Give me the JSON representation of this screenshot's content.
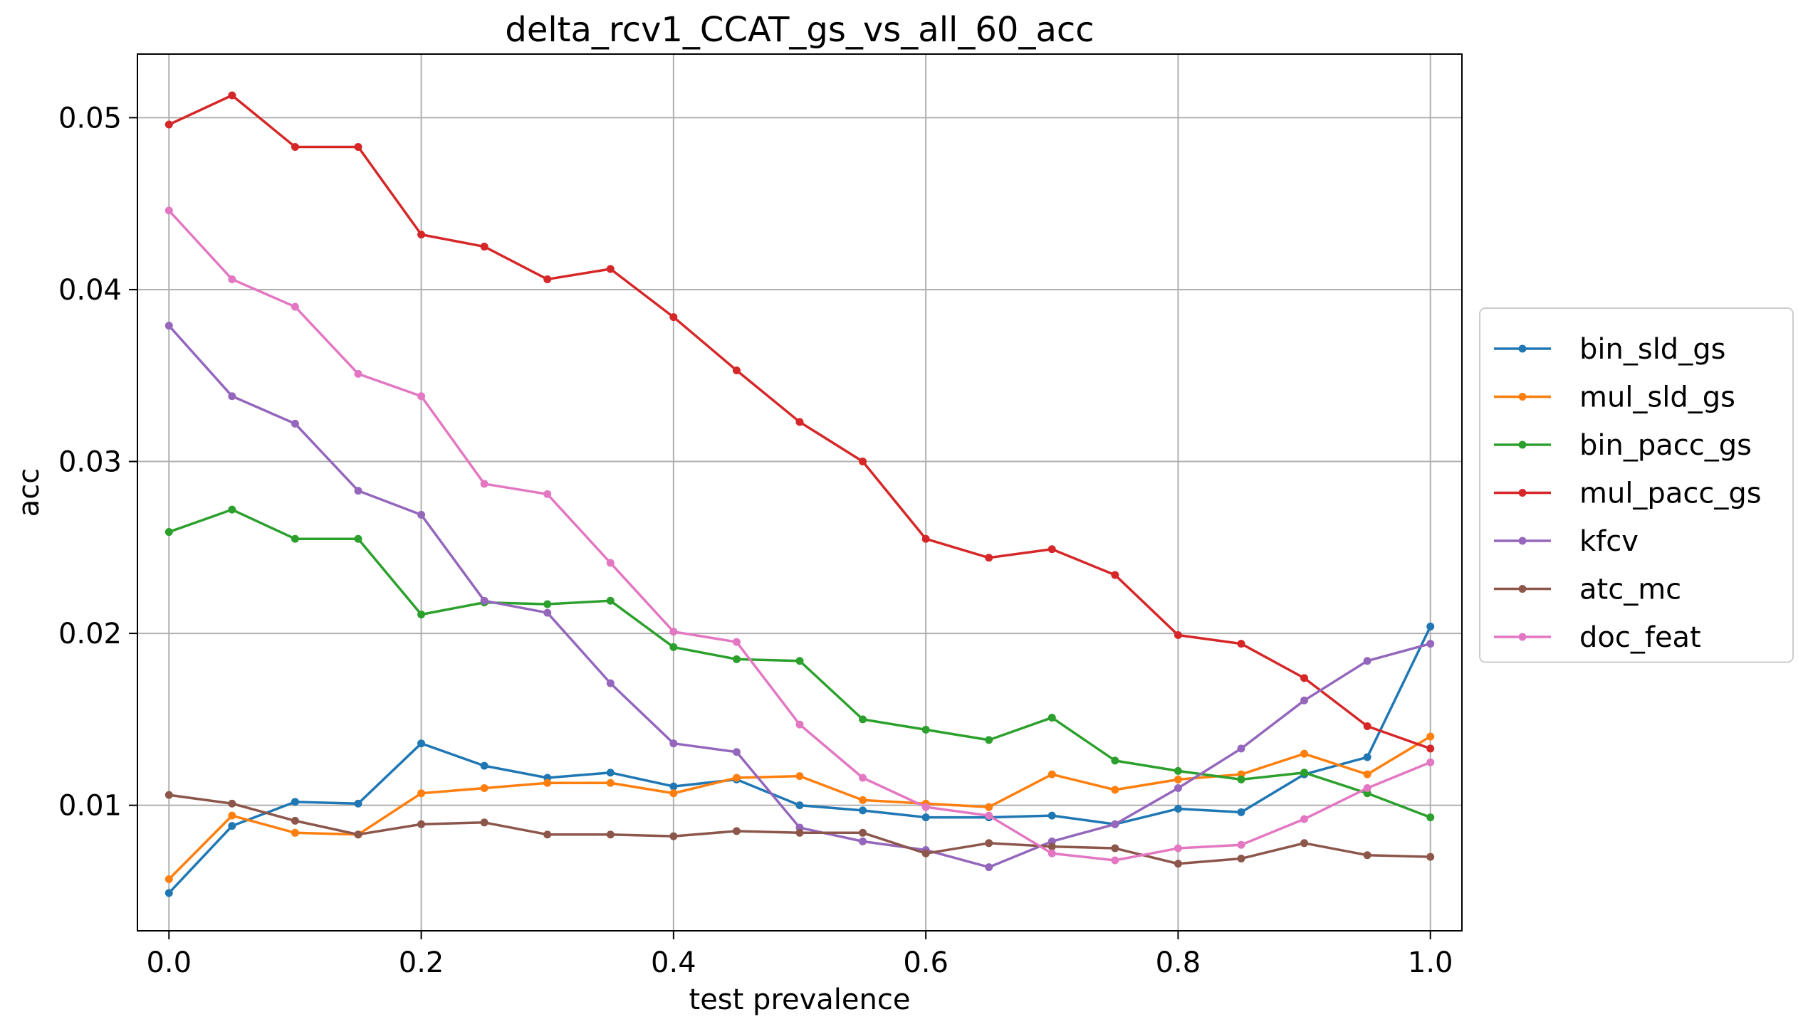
{
  "chart_data": {
    "type": "line",
    "title": "delta_rcv1_CCAT_gs_vs_all_60_acc",
    "xlabel": "test prevalence",
    "ylabel": "acc",
    "xlim": [
      -0.025,
      1.025
    ],
    "ylim": [
      0.0027,
      0.0537
    ],
    "xticks": [
      0.0,
      0.2,
      0.4,
      0.6,
      0.8,
      1.0
    ],
    "xtick_labels": [
      "0.0",
      "0.2",
      "0.4",
      "0.6",
      "0.8",
      "1.0"
    ],
    "yticks": [
      0.01,
      0.02,
      0.03,
      0.04,
      0.05
    ],
    "ytick_labels": [
      "0.01",
      "0.02",
      "0.03",
      "0.04",
      "0.05"
    ],
    "grid": true,
    "legend_position": "center-right-outside",
    "x": [
      0.0,
      0.05,
      0.1,
      0.15,
      0.2,
      0.25,
      0.3,
      0.35,
      0.4,
      0.45,
      0.5,
      0.55,
      0.6,
      0.65,
      0.7,
      0.75,
      0.8,
      0.85,
      0.9,
      0.95,
      1.0
    ],
    "series": [
      {
        "name": "bin_sld_gs",
        "color": "#1f77b4",
        "values": [
          0.0049,
          0.0088,
          0.0102,
          0.0101,
          0.0136,
          0.0123,
          0.0116,
          0.0119,
          0.0111,
          0.0115,
          0.01,
          0.0097,
          0.0093,
          0.0093,
          0.0094,
          0.0089,
          0.0098,
          0.0096,
          0.0118,
          0.0128,
          0.0204
        ]
      },
      {
        "name": "mul_sld_gs",
        "color": "#ff7f0e",
        "values": [
          0.0057,
          0.0094,
          0.0084,
          0.0083,
          0.0107,
          0.011,
          0.0113,
          0.0113,
          0.0107,
          0.0116,
          0.0117,
          0.0103,
          0.0101,
          0.0099,
          0.0118,
          0.0109,
          0.0115,
          0.0118,
          0.013,
          0.0118,
          0.014
        ]
      },
      {
        "name": "bin_pacc_gs",
        "color": "#2ca02c",
        "values": [
          0.0259,
          0.0272,
          0.0255,
          0.0255,
          0.0211,
          0.0218,
          0.0217,
          0.0219,
          0.0192,
          0.0185,
          0.0184,
          0.015,
          0.0144,
          0.0138,
          0.0151,
          0.0126,
          0.012,
          0.0115,
          0.0119,
          0.0107,
          0.0093
        ]
      },
      {
        "name": "mul_pacc_gs",
        "color": "#d62728",
        "values": [
          0.0496,
          0.0513,
          0.0483,
          0.0483,
          0.0432,
          0.0425,
          0.0406,
          0.0412,
          0.0384,
          0.0353,
          0.0323,
          0.03,
          0.0255,
          0.0244,
          0.0249,
          0.0234,
          0.0199,
          0.0194,
          0.0174,
          0.0146,
          0.0133
        ]
      },
      {
        "name": "kfcv",
        "color": "#9467bd",
        "values": [
          0.0379,
          0.0338,
          0.0322,
          0.0283,
          0.0269,
          0.0219,
          0.0212,
          0.0171,
          0.0136,
          0.0131,
          0.0087,
          0.0079,
          0.0074,
          0.0064,
          0.0079,
          0.0089,
          0.011,
          0.0133,
          0.0161,
          0.0184,
          0.0194
        ]
      },
      {
        "name": "atc_mc",
        "color": "#8c564b",
        "values": [
          0.0106,
          0.0101,
          0.0091,
          0.0083,
          0.0089,
          0.009,
          0.0083,
          0.0083,
          0.0082,
          0.0085,
          0.0084,
          0.0084,
          0.0072,
          0.0078,
          0.0076,
          0.0075,
          0.0066,
          0.0069,
          0.0078,
          0.0071,
          0.007
        ]
      },
      {
        "name": "doc_feat",
        "color": "#e377c2",
        "values": [
          0.0446,
          0.0406,
          0.039,
          0.0351,
          0.0338,
          0.0287,
          0.0281,
          0.0241,
          0.0201,
          0.0195,
          0.0147,
          0.0116,
          0.0099,
          0.0094,
          0.0072,
          0.0068,
          0.0075,
          0.0077,
          0.0092,
          0.011,
          0.0125
        ]
      }
    ]
  }
}
